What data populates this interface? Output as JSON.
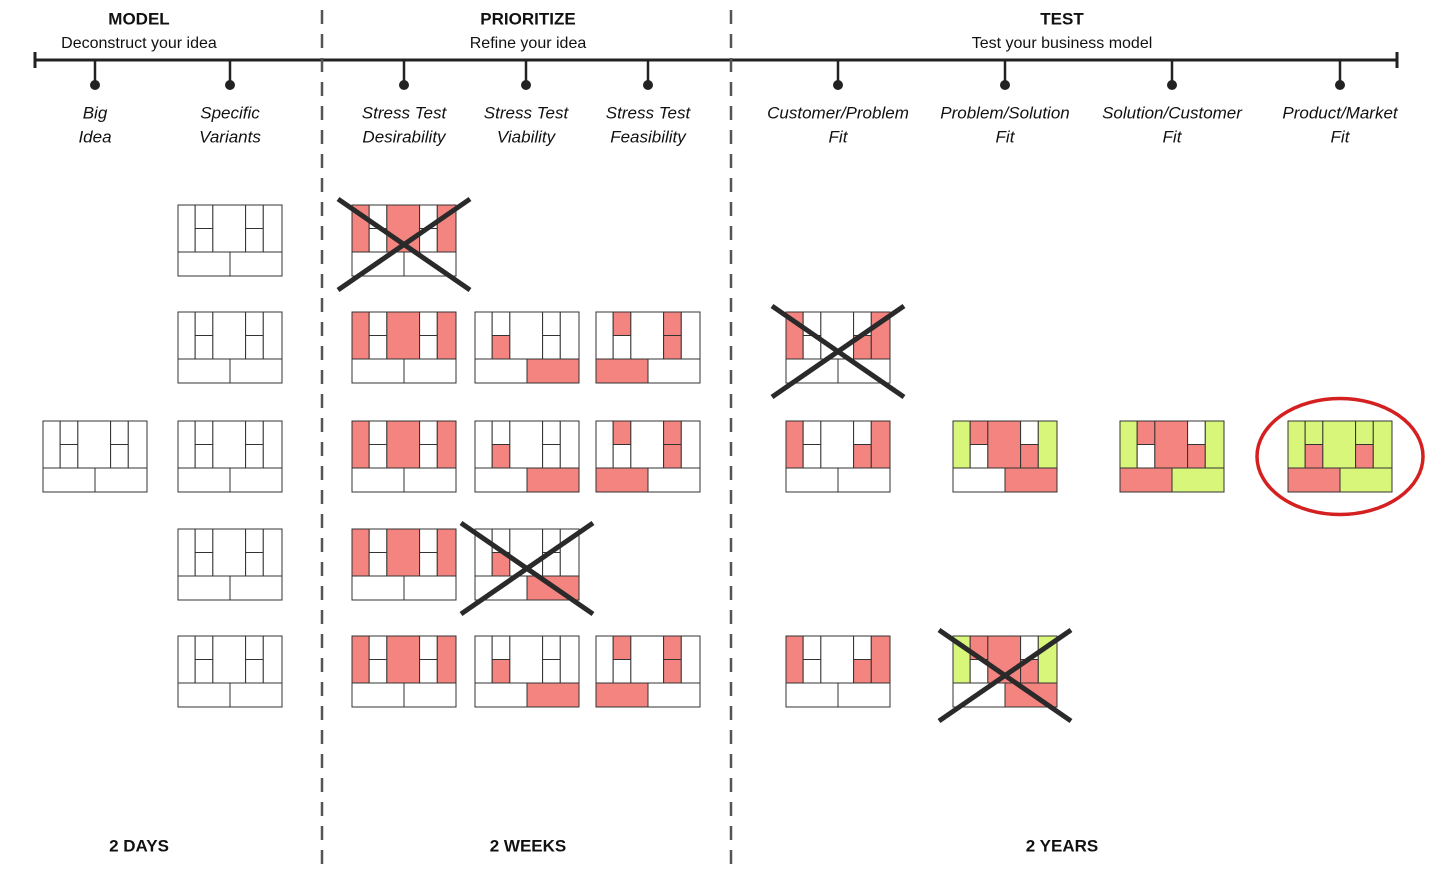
{
  "phases": [
    {
      "title": "MODEL",
      "subtitle": "Deconstruct your idea",
      "duration": "2 DAYS"
    },
    {
      "title": "PRIORITIZE",
      "subtitle": "Refine your idea",
      "duration": "2 WEEKS"
    },
    {
      "title": "TEST",
      "subtitle": "Test your business model",
      "duration": "2 YEARS"
    }
  ],
  "steps": [
    {
      "lines": [
        "Big",
        "Idea"
      ]
    },
    {
      "lines": [
        "Specific",
        "Variants"
      ]
    },
    {
      "lines": [
        "Stress Test",
        "Desirability"
      ]
    },
    {
      "lines": [
        "Stress Test",
        "Viability"
      ]
    },
    {
      "lines": [
        "Stress Test",
        "Feasibility"
      ]
    },
    {
      "lines": [
        "Customer/Problem",
        "Fit"
      ]
    },
    {
      "lines": [
        "Problem/Solution",
        "Fit"
      ]
    },
    {
      "lines": [
        "Solution/Customer",
        "Fit"
      ]
    },
    {
      "lines": [
        "Product/Market",
        "Fit"
      ]
    }
  ]
}
